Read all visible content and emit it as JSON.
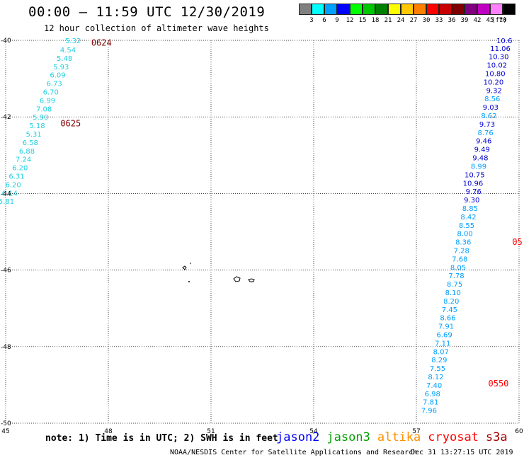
{
  "header": {
    "title": "00:00 – 11:59 UTC 12/30/2019",
    "subtitle": "12 hour collection of altimeter wave heights"
  },
  "legend": {
    "unit": "(ft)",
    "bins": [
      {
        "label": "3",
        "color": "#808080"
      },
      {
        "label": "6",
        "color": "#00ffff"
      },
      {
        "label": "9",
        "color": "#00a0ff"
      },
      {
        "label": "12",
        "color": "#0000ff"
      },
      {
        "label": "15",
        "color": "#00ff00"
      },
      {
        "label": "18",
        "color": "#00c800"
      },
      {
        "label": "21",
        "color": "#008000"
      },
      {
        "label": "24",
        "color": "#ffff00"
      },
      {
        "label": "27",
        "color": "#ffc800"
      },
      {
        "label": "30",
        "color": "#ff8000"
      },
      {
        "label": "33",
        "color": "#ff0000"
      },
      {
        "label": "36",
        "color": "#c80000"
      },
      {
        "label": "39",
        "color": "#800000"
      },
      {
        "label": "42",
        "color": "#800080"
      },
      {
        "label": "45",
        "color": "#c000c0"
      },
      {
        "label": "70",
        "color": "#ff80ff"
      },
      {
        "label": "",
        "color": "#000000"
      }
    ]
  },
  "map": {
    "lon_range": [
      45,
      60
    ],
    "lat_range": [
      -50,
      -40
    ],
    "lon_ticks": [
      "45",
      "48",
      "51",
      "54",
      "57",
      "60"
    ],
    "lat_ticks": [
      "-40",
      "-42",
      "-44",
      "-46",
      "-48",
      "-50"
    ],
    "grid": "dotted"
  },
  "tracks": [
    {
      "satellite": "track-west",
      "time_labels": [
        {
          "text": "0624",
          "lon": 47.5,
          "lat": -40.05,
          "color": "#800000"
        },
        {
          "text": "0625",
          "lon": 46.6,
          "lat": -42.15,
          "color": "#800000"
        }
      ],
      "points": [
        {
          "lon": 47.2,
          "lat": -40.0,
          "swh": "5.32",
          "color": "#20d0e0"
        },
        {
          "lon": 47.05,
          "lat": -40.24,
          "swh": "4.54",
          "color": "#20d0e0"
        },
        {
          "lon": 46.95,
          "lat": -40.46,
          "swh": "5.48",
          "color": "#20d0e0"
        },
        {
          "lon": 46.85,
          "lat": -40.68,
          "swh": "5.93",
          "color": "#20d0e0"
        },
        {
          "lon": 46.75,
          "lat": -40.9,
          "swh": "6.09",
          "color": "#20d0e0"
        },
        {
          "lon": 46.65,
          "lat": -41.12,
          "swh": "6.73",
          "color": "#20d0e0"
        },
        {
          "lon": 46.55,
          "lat": -41.34,
          "swh": "6.70",
          "color": "#20d0e0"
        },
        {
          "lon": 46.45,
          "lat": -41.56,
          "swh": "6.99",
          "color": "#20d0e0"
        },
        {
          "lon": 46.35,
          "lat": -41.78,
          "swh": "7.08",
          "color": "#20d0e0"
        },
        {
          "lon": 46.25,
          "lat": -42.0,
          "swh": "5.90",
          "color": "#20d0e0"
        },
        {
          "lon": 46.15,
          "lat": -42.22,
          "swh": "5.18",
          "color": "#20d0e0"
        },
        {
          "lon": 46.05,
          "lat": -42.44,
          "swh": "5.31",
          "color": "#20d0e0"
        },
        {
          "lon": 45.95,
          "lat": -42.66,
          "swh": "6.58",
          "color": "#20d0e0"
        },
        {
          "lon": 45.85,
          "lat": -42.88,
          "swh": "6.88",
          "color": "#20d0e0"
        },
        {
          "lon": 45.75,
          "lat": -43.1,
          "swh": "7.24",
          "color": "#20d0e0"
        },
        {
          "lon": 45.65,
          "lat": -43.32,
          "swh": "6.20",
          "color": "#20d0e0"
        },
        {
          "lon": 45.55,
          "lat": -43.54,
          "swh": "6.31",
          "color": "#20d0e0"
        },
        {
          "lon": 45.45,
          "lat": -43.76,
          "swh": "6.20",
          "color": "#20d0e0"
        },
        {
          "lon": 45.35,
          "lat": -43.98,
          "swh": "6.14",
          "color": "#20d0e0"
        },
        {
          "lon": 45.25,
          "lat": -44.2,
          "swh": "5.81",
          "color": "#20d0e0"
        }
      ]
    },
    {
      "satellite": "track-east",
      "time_labels": [
        {
          "text": "05",
          "lon": 59.8,
          "lat": -45.25,
          "color": "#ff0000"
        },
        {
          "text": "0550",
          "lon": 59.1,
          "lat": -48.95,
          "color": "#ff0000"
        }
      ],
      "points": [
        {
          "lon": 59.8,
          "lat": -40.0,
          "swh": "10.6",
          "color": "#0000d0"
        },
        {
          "lon": 59.75,
          "lat": -40.2,
          "swh": "11.06",
          "color": "#0000d0"
        },
        {
          "lon": 59.7,
          "lat": -40.42,
          "swh": "10.30",
          "color": "#0000d0"
        },
        {
          "lon": 59.65,
          "lat": -40.64,
          "swh": "10.02",
          "color": "#0000d0"
        },
        {
          "lon": 59.6,
          "lat": -40.86,
          "swh": "10.80",
          "color": "#0000d0"
        },
        {
          "lon": 59.55,
          "lat": -41.08,
          "swh": "10.20",
          "color": "#0000d0"
        },
        {
          "lon": 59.5,
          "lat": -41.3,
          "swh": "9.32",
          "color": "#0000d0"
        },
        {
          "lon": 59.45,
          "lat": -41.52,
          "swh": "8.56",
          "color": "#00a0ff"
        },
        {
          "lon": 59.4,
          "lat": -41.74,
          "swh": "9.03",
          "color": "#0000d0"
        },
        {
          "lon": 59.35,
          "lat": -41.96,
          "swh": "8.62",
          "color": "#00a0ff"
        },
        {
          "lon": 59.3,
          "lat": -42.18,
          "swh": "9.73",
          "color": "#0000d0"
        },
        {
          "lon": 59.25,
          "lat": -42.4,
          "swh": "8.76",
          "color": "#00a0ff"
        },
        {
          "lon": 59.2,
          "lat": -42.62,
          "swh": "9.46",
          "color": "#0000d0"
        },
        {
          "lon": 59.15,
          "lat": -42.84,
          "swh": "9.49",
          "color": "#0000d0"
        },
        {
          "lon": 59.1,
          "lat": -43.06,
          "swh": "9.48",
          "color": "#0000d0"
        },
        {
          "lon": 59.05,
          "lat": -43.28,
          "swh": "8.99",
          "color": "#00a0ff"
        },
        {
          "lon": 59.0,
          "lat": -43.5,
          "swh": "10.75",
          "color": "#0000d0"
        },
        {
          "lon": 58.95,
          "lat": -43.72,
          "swh": "10.96",
          "color": "#0000d0"
        },
        {
          "lon": 58.9,
          "lat": -43.94,
          "swh": "9.76",
          "color": "#0000d0"
        },
        {
          "lon": 58.85,
          "lat": -44.16,
          "swh": "9.30",
          "color": "#0000d0"
        },
        {
          "lon": 58.8,
          "lat": -44.38,
          "swh": "8.85",
          "color": "#00a0ff"
        },
        {
          "lon": 58.75,
          "lat": -44.6,
          "swh": "8.42",
          "color": "#00a0ff"
        },
        {
          "lon": 58.7,
          "lat": -44.82,
          "swh": "8.55",
          "color": "#00a0ff"
        },
        {
          "lon": 58.65,
          "lat": -45.04,
          "swh": "8.00",
          "color": "#00a0ff"
        },
        {
          "lon": 58.6,
          "lat": -45.26,
          "swh": "8.36",
          "color": "#00a0ff"
        },
        {
          "lon": 58.55,
          "lat": -45.48,
          "swh": "7.28",
          "color": "#00a0ff"
        },
        {
          "lon": 58.5,
          "lat": -45.7,
          "swh": "7.68",
          "color": "#00a0ff"
        },
        {
          "lon": 58.45,
          "lat": -45.92,
          "swh": "8.05",
          "color": "#00a0ff"
        },
        {
          "lon": 58.4,
          "lat": -46.14,
          "swh": "7.78",
          "color": "#00a0ff"
        },
        {
          "lon": 58.35,
          "lat": -46.36,
          "swh": "8.75",
          "color": "#00a0ff"
        },
        {
          "lon": 58.3,
          "lat": -46.58,
          "swh": "8.10",
          "color": "#00a0ff"
        },
        {
          "lon": 58.25,
          "lat": -46.8,
          "swh": "8.20",
          "color": "#00a0ff"
        },
        {
          "lon": 58.2,
          "lat": -47.02,
          "swh": "7.45",
          "color": "#00a0ff"
        },
        {
          "lon": 58.15,
          "lat": -47.24,
          "swh": "8.66",
          "color": "#00a0ff"
        },
        {
          "lon": 58.1,
          "lat": -47.46,
          "swh": "7.91",
          "color": "#00a0ff"
        },
        {
          "lon": 58.05,
          "lat": -47.68,
          "swh": "6.69",
          "color": "#00a0ff"
        },
        {
          "lon": 58.0,
          "lat": -47.9,
          "swh": "7.11",
          "color": "#00a0ff"
        },
        {
          "lon": 57.95,
          "lat": -48.12,
          "swh": "8.07",
          "color": "#00a0ff"
        },
        {
          "lon": 57.9,
          "lat": -48.34,
          "swh": "8.29",
          "color": "#00a0ff"
        },
        {
          "lon": 57.85,
          "lat": -48.56,
          "swh": "7.55",
          "color": "#00a0ff"
        },
        {
          "lon": 57.8,
          "lat": -48.78,
          "swh": "8.12",
          "color": "#00a0ff"
        },
        {
          "lon": 57.75,
          "lat": -49.0,
          "swh": "7.40",
          "color": "#00a0ff"
        },
        {
          "lon": 57.7,
          "lat": -49.22,
          "swh": "6.98",
          "color": "#00a0ff"
        },
        {
          "lon": 57.65,
          "lat": -49.44,
          "swh": "7.81",
          "color": "#00a0ff"
        },
        {
          "lon": 57.6,
          "lat": -49.66,
          "swh": "7.96",
          "color": "#00a0ff"
        }
      ]
    }
  ],
  "footer": {
    "note": "note: 1) Time is in UTC; 2) SWH is in feet",
    "satellites": [
      {
        "name": "jason2",
        "color": "#0000ff"
      },
      {
        "name": "jason3",
        "color": "#00a000"
      },
      {
        "name": "altika",
        "color": "#ff9000"
      },
      {
        "name": "cryosat",
        "color": "#ff0000"
      },
      {
        "name": "s3a",
        "color": "#a00000"
      }
    ],
    "credit": "NOAA/NESDIS Center for Satellite Applications and Research",
    "timestamp": "Dec 31 13:27:15 UTC 2019"
  }
}
